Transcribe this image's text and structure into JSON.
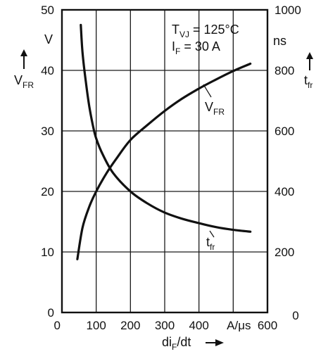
{
  "chart_data": {
    "type": "line",
    "x_axis": {
      "label_main": "di",
      "label_sub": "F",
      "label_tail": "/dt",
      "range": [
        0,
        600
      ],
      "ticks": [
        0,
        100,
        200,
        300,
        400,
        500,
        600
      ],
      "tick_labels": [
        "0",
        "100",
        "200",
        "300",
        "400",
        "A/μs",
        "600"
      ]
    },
    "y_left": {
      "unit": "V",
      "symbol_main": "V",
      "symbol_sub": "FR",
      "range": [
        0,
        50
      ],
      "ticks": [
        0,
        10,
        20,
        30,
        40,
        50
      ],
      "tick_labels": [
        "0",
        "10",
        "20",
        "30",
        "40",
        "50"
      ]
    },
    "y_right": {
      "unit": "ns",
      "symbol_main": "t",
      "symbol_sub": "fr",
      "range": [
        0,
        1000
      ],
      "ticks": [
        0,
        200,
        400,
        600,
        800,
        1000
      ],
      "tick_labels": [
        "0",
        "200",
        "400",
        "600",
        "800",
        "1000"
      ]
    },
    "conditions": {
      "line1_main": "T",
      "line1_sub": "VJ",
      "line1_value": " = 125°C",
      "line2_main": "I",
      "line2_sub": "F",
      "line2_value": "  =  30  A"
    },
    "series": [
      {
        "name_main": "V",
        "name_sub": "FR",
        "axis": "left",
        "x": [
          45,
          60,
          80,
          100,
          130,
          160,
          200,
          250,
          300,
          350,
          400,
          450,
          500,
          550
        ],
        "y": [
          8.8,
          14,
          17.5,
          20,
          23,
          25.5,
          28.5,
          31,
          33.3,
          35.3,
          37,
          38.5,
          39.9,
          41.1
        ]
      },
      {
        "name_main": "t",
        "name_sub": "fr",
        "axis": "right",
        "x": [
          55,
          60,
          70,
          80,
          90,
          100,
          120,
          150,
          200,
          250,
          300,
          350,
          400,
          450,
          500,
          550
        ],
        "y": [
          950,
          860,
          760,
          680,
          620,
          575,
          520,
          460,
          400,
          360,
          330,
          310,
          295,
          282,
          273,
          267
        ]
      }
    ]
  }
}
